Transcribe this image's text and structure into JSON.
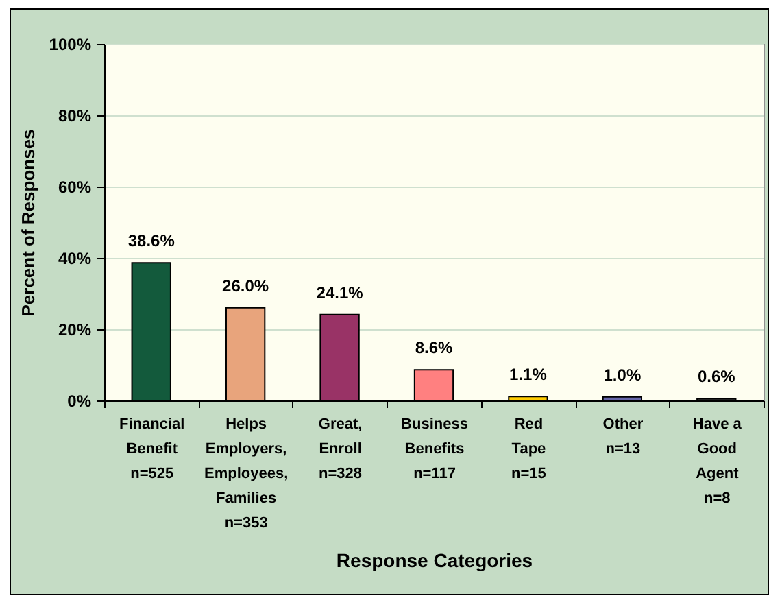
{
  "chart_data": {
    "type": "bar",
    "xlabel": "Response Categories",
    "ylabel": "Percent of Responses",
    "categories": [
      "Financial\nBenefit\nn=525",
      "Helps\nEmployers,\nEmployees,\nFamilies\nn=353",
      "Great,\nEnroll\nn=328",
      "Business\nBenefits\nn=117",
      "Red\nTape\nn=15",
      "Other\nn=13",
      "Have a\nGood\nAgent\nn=8"
    ],
    "values": [
      38.6,
      26.0,
      24.1,
      8.6,
      1.1,
      1.0,
      0.6
    ],
    "value_labels": [
      "38.6%",
      "26.0%",
      "24.1%",
      "8.6%",
      "1.1%",
      "1.0%",
      "0.6%"
    ],
    "colors": [
      "#135a3c",
      "#e8a47c",
      "#993366",
      "#ff8080",
      "#ffcc00",
      "#6666aa",
      "#222222"
    ],
    "ylim": [
      0,
      100
    ],
    "yticks": [
      {
        "value": 0,
        "label": "0%"
      },
      {
        "value": 20,
        "label": "20%"
      },
      {
        "value": 40,
        "label": "40%"
      },
      {
        "value": 60,
        "label": "60%"
      },
      {
        "value": 80,
        "label": "80%"
      },
      {
        "value": 100,
        "label": "100%"
      }
    ],
    "grid": "y"
  }
}
